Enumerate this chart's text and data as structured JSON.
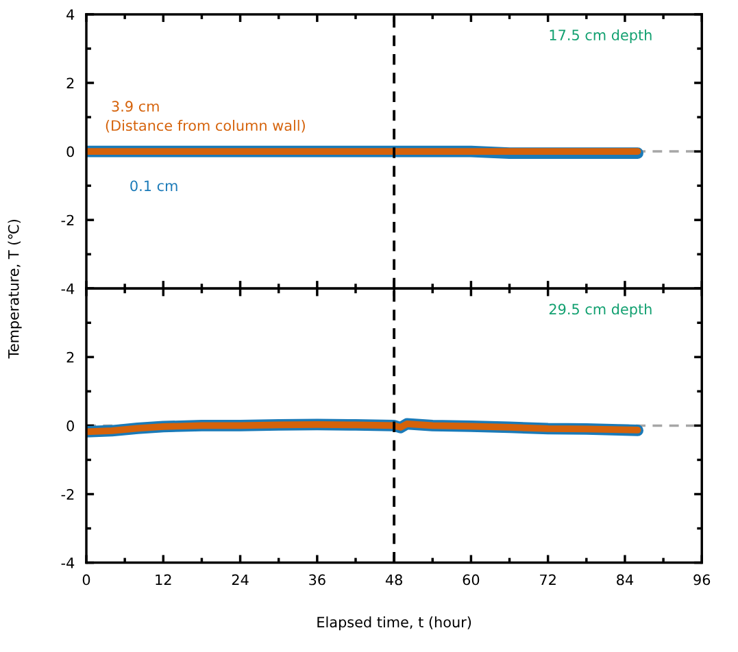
{
  "chart_data": [
    {
      "type": "line",
      "annotations": [
        "17.5 cm depth",
        "(Distance from column wall)"
      ],
      "ylabel": "Temperature, T (℃)",
      "xlim": [
        0,
        96
      ],
      "xticks": [
        0,
        12,
        24,
        36,
        48,
        60,
        72,
        84,
        96
      ],
      "ylim": [
        -4,
        4
      ],
      "yticks": [
        -4,
        -2,
        0,
        2,
        4
      ],
      "tick_labels": "y",
      "line_style": "solid",
      "ref_lines": [
        {
          "axis": "y",
          "value": 0,
          "color": "#a6a6a6",
          "line_style": "dashed"
        },
        {
          "axis": "x",
          "value": 48,
          "color": "#000000",
          "line_style": "dashed"
        }
      ],
      "series": [
        {
          "name": "3.9 cm",
          "color": "#d5620a",
          "x": [
            0,
            12,
            24,
            36,
            48,
            60,
            72,
            86
          ],
          "values": [
            0,
            0,
            0,
            0,
            0,
            0,
            0,
            0
          ]
        },
        {
          "name": "0.1 cm",
          "color": "#1a7ab8",
          "x": [
            0,
            12,
            24,
            36,
            48,
            60,
            66,
            72,
            80,
            86
          ],
          "values": [
            0,
            0,
            0,
            0,
            0,
            0,
            -0.05,
            -0.05,
            -0.05,
            -0.05
          ]
        }
      ]
    },
    {
      "type": "line",
      "annotations": [
        "29.5 cm depth"
      ],
      "xlabel": "Elapsed time, t (hour)",
      "xlim": [
        0,
        96
      ],
      "xticks": [
        0,
        12,
        24,
        36,
        48,
        60,
        72,
        84,
        96
      ],
      "ylim": [
        -4,
        4
      ],
      "yticks": [
        -4,
        -2,
        0,
        2,
        {
          "value": 4,
          "label": null
        }
      ],
      "line_style": "solid",
      "ref_lines": [
        {
          "axis": "y",
          "value": 0,
          "color": "#a6a6a6",
          "line_style": "dashed"
        },
        {
          "axis": "x",
          "value": 48,
          "color": "#000000",
          "line_style": "dashed"
        }
      ],
      "series": [
        {
          "color": "#d5620a",
          "x": [
            0,
            4,
            8,
            12,
            18,
            24,
            30,
            36,
            42,
            48,
            49,
            50,
            54,
            60,
            66,
            72,
            78,
            86
          ],
          "values": [
            -0.18,
            -0.15,
            -0.08,
            -0.03,
            0,
            0,
            0.02,
            0.03,
            0.02,
            0,
            -0.05,
            0.05,
            0,
            -0.02,
            -0.05,
            -0.09,
            -0.1,
            -0.13
          ]
        },
        {
          "color": "#1a7ab8",
          "x": [
            0,
            4,
            8,
            12,
            18,
            24,
            30,
            36,
            42,
            48,
            49,
            50,
            54,
            60,
            66,
            72,
            78,
            86
          ],
          "values": [
            -0.18,
            -0.15,
            -0.08,
            -0.03,
            0,
            0,
            0.02,
            0.03,
            0.02,
            0,
            -0.06,
            0.05,
            0,
            -0.02,
            -0.05,
            -0.09,
            -0.1,
            -0.14
          ]
        }
      ]
    }
  ]
}
